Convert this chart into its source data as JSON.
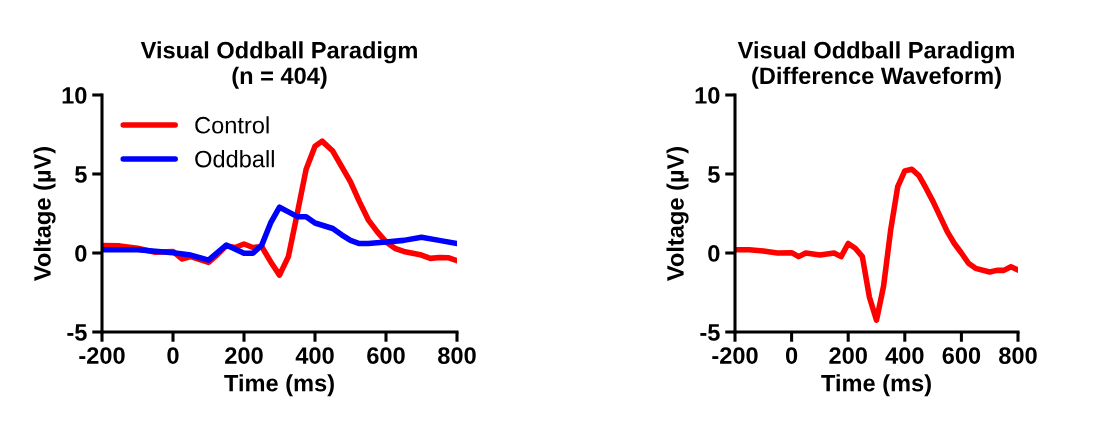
{
  "chart_data": [
    {
      "type": "line",
      "title": "Visual Oddball Paradigm\n(n = 404)",
      "xlabel": "Time (ms)",
      "ylabel": "Voltage (µV)",
      "xlim": [
        -200,
        800
      ],
      "ylim": [
        -5,
        10
      ],
      "xticks": [
        -200,
        0,
        200,
        400,
        600,
        800
      ],
      "yticks": [
        -5,
        0,
        5,
        10
      ],
      "grid": false,
      "legend": "top left",
      "series": [
        {
          "name": "Control",
          "color": "#ff0000",
          "x": [
            -200,
            -150,
            -100,
            -50,
            0,
            25,
            50,
            100,
            125,
            150,
            175,
            200,
            225,
            250,
            275,
            300,
            325,
            350,
            375,
            400,
            420,
            450,
            500,
            525,
            550,
            575,
            600,
            625,
            650,
            700,
            725,
            750,
            775,
            800
          ],
          "values": [
            0.47,
            0.45,
            0.3,
            0.05,
            0.1,
            -0.38,
            -0.23,
            -0.6,
            -0.1,
            0.45,
            0.35,
            0.57,
            0.35,
            0.4,
            -0.55,
            -1.4,
            -0.23,
            2.5,
            5.3,
            6.75,
            7.08,
            6.45,
            4.5,
            3.25,
            2.1,
            1.35,
            0.7,
            0.3,
            0.1,
            -0.13,
            -0.34,
            -0.28,
            -0.3,
            -0.49
          ]
        },
        {
          "name": "Oddball",
          "color": "#0000ff",
          "x": [
            -200,
            -100,
            0,
            50,
            100,
            150,
            200,
            225,
            250,
            275,
            300,
            325,
            350,
            375,
            400,
            450,
            475,
            500,
            525,
            550,
            600,
            650,
            700,
            750,
            800
          ],
          "values": [
            0.2,
            0.2,
            0.02,
            -0.13,
            -0.45,
            0.5,
            -0.02,
            -0.02,
            0.5,
            1.9,
            2.9,
            2.6,
            2.3,
            2.3,
            1.9,
            1.55,
            1.15,
            0.8,
            0.6,
            0.6,
            0.7,
            0.8,
            1.0,
            0.8,
            0.6
          ]
        }
      ]
    },
    {
      "type": "line",
      "title": "Visual Oddball Paradigm\n(Difference Waveform)",
      "xlabel": "Time (ms)",
      "ylabel": "Voltage (µV)",
      "xlim": [
        -200,
        800
      ],
      "ylim": [
        -5,
        10
      ],
      "xticks": [
        -200,
        0,
        200,
        400,
        600,
        800
      ],
      "yticks": [
        -5,
        0,
        5,
        10
      ],
      "grid": false,
      "series": [
        {
          "color": "#ff0000",
          "x": [
            -200,
            -150,
            -100,
            -50,
            0,
            25,
            50,
            100,
            150,
            175,
            200,
            225,
            250,
            275,
            300,
            325,
            350,
            375,
            400,
            425,
            450,
            475,
            500,
            525,
            550,
            575,
            600,
            625,
            650,
            700,
            725,
            750,
            775,
            800
          ],
          "values": [
            0.2,
            0.2,
            0.13,
            0,
            0.02,
            -0.23,
            0,
            -0.13,
            0,
            -0.23,
            0.6,
            0.3,
            -0.23,
            -2.8,
            -4.25,
            -2.1,
            1.45,
            4.2,
            5.2,
            5.3,
            4.9,
            4.1,
            3.25,
            2.3,
            1.35,
            0.6,
            0,
            -0.65,
            -0.97,
            -1.2,
            -1.1,
            -1.1,
            -0.87,
            -1.08
          ]
        }
      ]
    }
  ]
}
